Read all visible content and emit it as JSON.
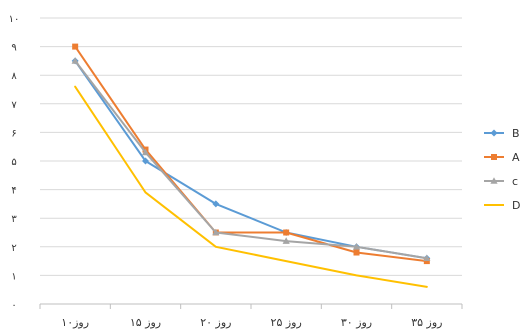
{
  "chart_data": {
    "type": "line",
    "title": "",
    "xlabel": "",
    "ylabel": "",
    "categories": [
      "۱۰روز",
      "۱۵ روز",
      "۲۰ روز",
      "۲۵ روز",
      "۳۰ روز",
      "۳۵ روز"
    ],
    "ylim": [
      0,
      10
    ],
    "y_ticks": [
      0,
      1,
      2,
      3,
      4,
      5,
      6,
      7,
      8,
      9,
      10
    ],
    "y_tick_labels": [
      "۰",
      "۱",
      "۲",
      "۳",
      "۴",
      "۵",
      "۶",
      "۷",
      "۸",
      "۹",
      "۱۰"
    ],
    "grid": true,
    "legend_position": "right",
    "series": [
      {
        "name": "B",
        "values": [
          8.5,
          5.0,
          3.5,
          2.5,
          2.0,
          1.6
        ],
        "color": "#5B9BD5",
        "marker": "diamond"
      },
      {
        "name": "A",
        "values": [
          9.0,
          5.4,
          2.5,
          2.5,
          1.8,
          1.5
        ],
        "color": "#ED7D31",
        "marker": "square"
      },
      {
        "name": "c",
        "values": [
          8.5,
          5.3,
          2.5,
          2.2,
          2.0,
          1.6
        ],
        "color": "#A5A5A5",
        "marker": "triangle"
      },
      {
        "name": "D",
        "values": [
          7.6,
          3.9,
          2.0,
          1.5,
          1.0,
          0.6
        ],
        "color": "#FFC000",
        "marker": "none"
      }
    ]
  }
}
